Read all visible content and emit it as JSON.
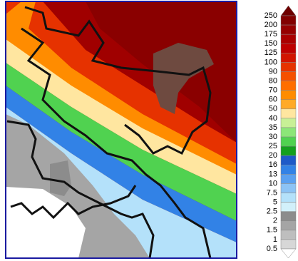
{
  "colorbar": {
    "labels": [
      "250",
      "200",
      "175",
      "150",
      "125",
      "100",
      "90",
      "80",
      "70",
      "60",
      "50",
      "40",
      "35",
      "30",
      "25",
      "20",
      "16",
      "13",
      "10",
      "7.5",
      "5",
      "2.5",
      "2",
      "1.5",
      "1",
      "0.5"
    ],
    "colors": [
      "#6e0000",
      "#820000",
      "#960000",
      "#aa0000",
      "#be0000",
      "#d21400",
      "#e63200",
      "#f55000",
      "#ff6e00",
      "#ff8c00",
      "#ffaa28",
      "#ffe6a0",
      "#c8f096",
      "#8ce678",
      "#50d250",
      "#14a01e",
      "#1e5ac8",
      "#3282e6",
      "#5aa0f0",
      "#8cc3f5",
      "#b4e1fa",
      "#d2f0fa",
      "#8c8c8c",
      "#a5a5a5",
      "#bebebe",
      "#d7d7d7",
      "#ffffff"
    ]
  }
}
